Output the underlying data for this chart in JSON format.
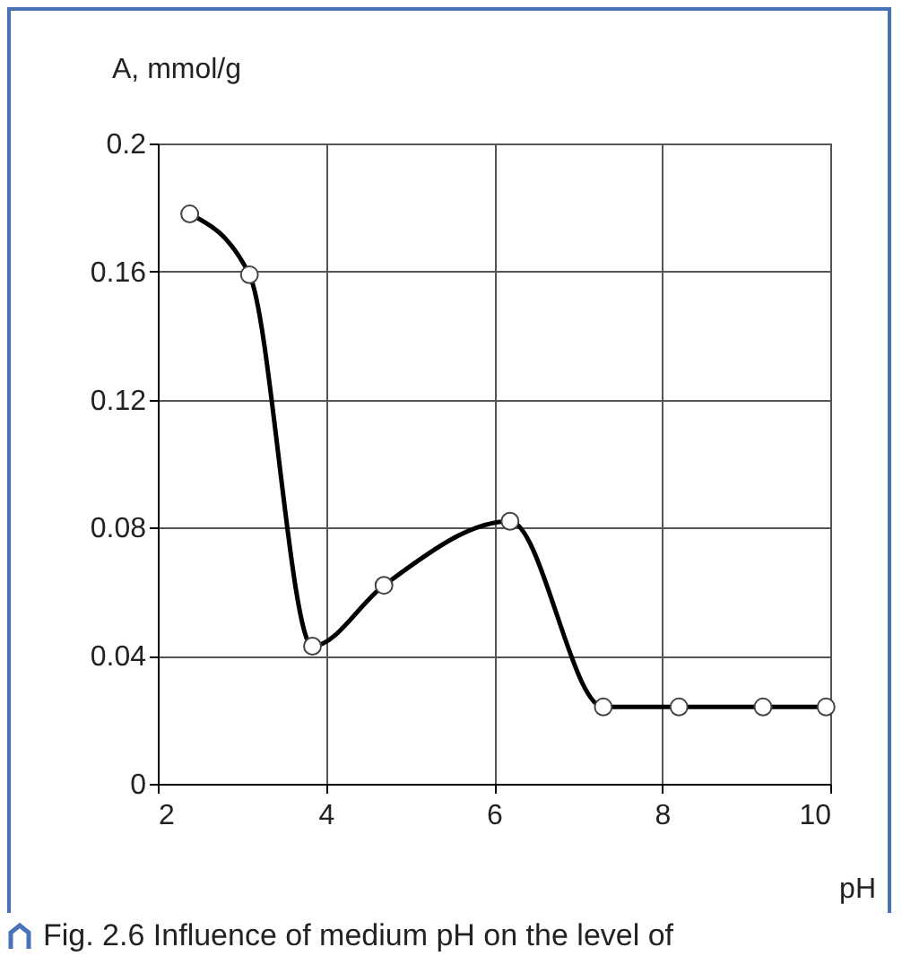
{
  "chart_data": {
    "type": "line",
    "xlabel": "pH",
    "ylabel": "A, mmol/g",
    "x": [
      2.38,
      3.09,
      3.84,
      4.69,
      6.19,
      7.3,
      8.2,
      9.2,
      9.95
    ],
    "series": [
      {
        "color": "#000000",
        "values": [
          0.178,
          0.159,
          0.043,
          0.062,
          0.082,
          0.024,
          0.024,
          0.024,
          0.024
        ]
      }
    ],
    "xlim": [
      2,
      10
    ],
    "xticks": [
      2,
      4,
      6,
      8,
      10
    ],
    "ylim": [
      0,
      0.2
    ],
    "yticks": [
      0,
      0.04,
      0.08,
      0.12,
      0.16,
      0.2
    ],
    "grid": true,
    "marker": "circle",
    "line_style": "solid",
    "annotations": [
      "Fig. 2.6 Influence of medium pH on the level of"
    ]
  }
}
